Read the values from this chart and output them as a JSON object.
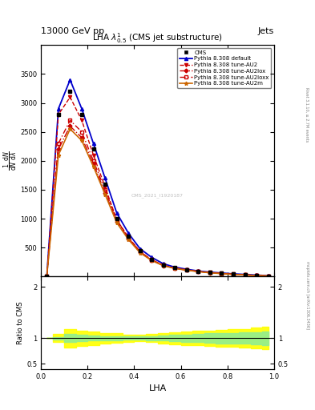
{
  "title": "LHA $\\lambda^{1}_{0.5}$ (CMS jet substructure)",
  "header_left": "13000 GeV pp",
  "header_right": "Jets",
  "xlabel": "LHA",
  "ylabel_ratio": "Ratio to CMS",
  "right_label": "Rivet 3.1.10, ≥ 2.7M events",
  "right_label2": "mcplots.cern.ch [arXiv:1306.3436]",
  "watermark": "CMS_2021_I1920187",
  "x_points": [
    0.025,
    0.075,
    0.125,
    0.175,
    0.225,
    0.275,
    0.325,
    0.375,
    0.425,
    0.475,
    0.525,
    0.575,
    0.625,
    0.675,
    0.725,
    0.775,
    0.825,
    0.875,
    0.925,
    0.975
  ],
  "cms_y": [
    0,
    2800,
    3200,
    2800,
    2200,
    1600,
    1000,
    700,
    450,
    300,
    200,
    150,
    120,
    90,
    70,
    55,
    40,
    30,
    20,
    10
  ],
  "pythia_default_y": [
    0,
    2900,
    3400,
    2900,
    2300,
    1700,
    1100,
    750,
    480,
    330,
    220,
    160,
    125,
    95,
    75,
    60,
    45,
    35,
    25,
    12
  ],
  "pythia_au2_y": [
    0,
    2800,
    3100,
    2700,
    2100,
    1550,
    980,
    680,
    430,
    290,
    195,
    145,
    115,
    88,
    68,
    52,
    38,
    28,
    18,
    9
  ],
  "pythia_au2lox_y": [
    0,
    2200,
    2600,
    2400,
    1950,
    1450,
    950,
    660,
    420,
    280,
    190,
    140,
    110,
    85,
    65,
    50,
    36,
    27,
    17,
    8
  ],
  "pythia_au2loxx_y": [
    0,
    2300,
    2700,
    2500,
    2000,
    1500,
    980,
    670,
    430,
    285,
    192,
    142,
    112,
    86,
    66,
    51,
    37,
    28,
    18,
    9
  ],
  "pythia_au2m_y": [
    0,
    2100,
    2550,
    2350,
    1900,
    1420,
    930,
    640,
    410,
    275,
    185,
    138,
    108,
    83,
    63,
    49,
    35,
    26,
    16,
    8
  ],
  "ratio_green_upper": [
    1.0,
    1.02,
    1.08,
    1.06,
    1.05,
    1.04,
    1.04,
    1.03,
    1.03,
    1.04,
    1.05,
    1.06,
    1.07,
    1.08,
    1.09,
    1.1,
    1.1,
    1.11,
    1.12,
    1.13
  ],
  "ratio_green_lower": [
    1.0,
    0.98,
    0.92,
    0.94,
    0.95,
    0.96,
    0.96,
    0.97,
    0.97,
    0.96,
    0.95,
    0.94,
    0.93,
    0.92,
    0.91,
    0.9,
    0.9,
    0.89,
    0.88,
    0.87
  ],
  "ratio_yellow_upper": [
    1.0,
    1.08,
    1.18,
    1.15,
    1.13,
    1.1,
    1.09,
    1.07,
    1.06,
    1.08,
    1.1,
    1.12,
    1.13,
    1.14,
    1.15,
    1.16,
    1.17,
    1.18,
    1.2,
    1.22
  ],
  "ratio_yellow_lower": [
    1.0,
    0.92,
    0.82,
    0.85,
    0.87,
    0.9,
    0.91,
    0.93,
    0.94,
    0.92,
    0.9,
    0.88,
    0.87,
    0.86,
    0.85,
    0.84,
    0.83,
    0.82,
    0.8,
    0.78
  ],
  "ylim_main": [
    0,
    4000
  ],
  "ylim_ratio": [
    0.4,
    2.2
  ],
  "yticks_main": [
    500,
    1000,
    1500,
    2000,
    2500,
    3000,
    3500
  ],
  "ytick_labels_main": [
    "500",
    "1000",
    "1500",
    "2000",
    "2500",
    "3000",
    "3500"
  ],
  "colors": {
    "cms": "#000000",
    "default": "#0000cc",
    "au2": "#cc0000",
    "au2lox": "#cc0000",
    "au2loxx": "#cc0000",
    "au2m": "#cc6600"
  }
}
